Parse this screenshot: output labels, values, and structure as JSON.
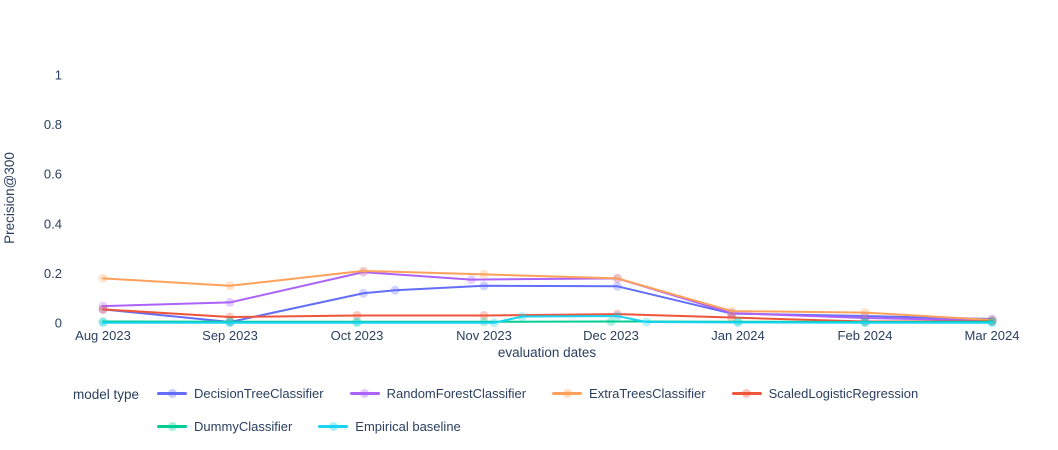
{
  "styles": {
    "font_color": "#2a3f5f",
    "background": "#ffffff"
  },
  "legend": {
    "title": "model type"
  },
  "chart_data": {
    "type": "line",
    "title": "",
    "xlabel": "evaluation dates",
    "ylabel": "Precision@300",
    "x_tick_labels": [
      "Aug 2023",
      "Sep 2023",
      "Oct 2023",
      "Nov 2023",
      "Dec 2023",
      "Jan 2024",
      "Feb 2024",
      "Mar 2024"
    ],
    "y_tick_labels": [
      "0",
      "0.2",
      "0.4",
      "0.6",
      "0.8",
      "1"
    ],
    "y_tick_values": [
      0,
      0.2,
      0.4,
      0.6,
      0.8,
      1
    ],
    "ylim": [
      0,
      1
    ],
    "grid": false,
    "legend_position": "bottom",
    "marker_style": "faint-dot",
    "x_unit": "months since Aug 2023 tick",
    "series": [
      {
        "name": "DecisionTreeClassifier",
        "color": "#636efa",
        "x": [
          0,
          1,
          2.05,
          2.3,
          3,
          4.05,
          4.95,
          6,
          7
        ],
        "y": [
          0.055,
          0.004,
          0.12,
          0.132,
          0.15,
          0.148,
          0.038,
          0.028,
          0.016
        ]
      },
      {
        "name": "RandomForestClassifier",
        "color": "#ab63fa",
        "x": [
          0,
          1,
          2.05,
          2.9,
          4.05,
          4.95,
          6,
          7
        ],
        "y": [
          0.068,
          0.083,
          0.205,
          0.175,
          0.18,
          0.04,
          0.02,
          0.01
        ]
      },
      {
        "name": "ExtraTreesClassifier",
        "color": "#ffa15a",
        "x": [
          0,
          1,
          2.05,
          3,
          4.05,
          4.95,
          6,
          7
        ],
        "y": [
          0.18,
          0.15,
          0.21,
          0.196,
          0.18,
          0.048,
          0.042,
          0.012
        ]
      },
      {
        "name": "ScaledLogisticRegression",
        "color": "#ef553b",
        "x": [
          0,
          1,
          2,
          3,
          4.05,
          4.95,
          6,
          7
        ],
        "y": [
          0.055,
          0.024,
          0.03,
          0.03,
          0.036,
          0.022,
          0.006,
          0.007
        ]
      },
      {
        "name": "DummyClassifier",
        "color": "#00cc96",
        "x": [
          0,
          1,
          2,
          3,
          4,
          5,
          6,
          7
        ],
        "y": [
          0.006,
          0.005,
          0.005,
          0.005,
          0.006,
          0.005,
          0.004,
          0.005
        ]
      },
      {
        "name": "Empirical baseline",
        "color": "#19d3f3",
        "x": [
          0,
          1,
          2,
          3.08,
          3.3,
          4.05,
          4.28,
          5,
          6,
          7
        ],
        "y": [
          0.001,
          0.001,
          0.001,
          0.001,
          0.026,
          0.028,
          0.004,
          0.002,
          0.001,
          0.001
        ]
      }
    ]
  }
}
